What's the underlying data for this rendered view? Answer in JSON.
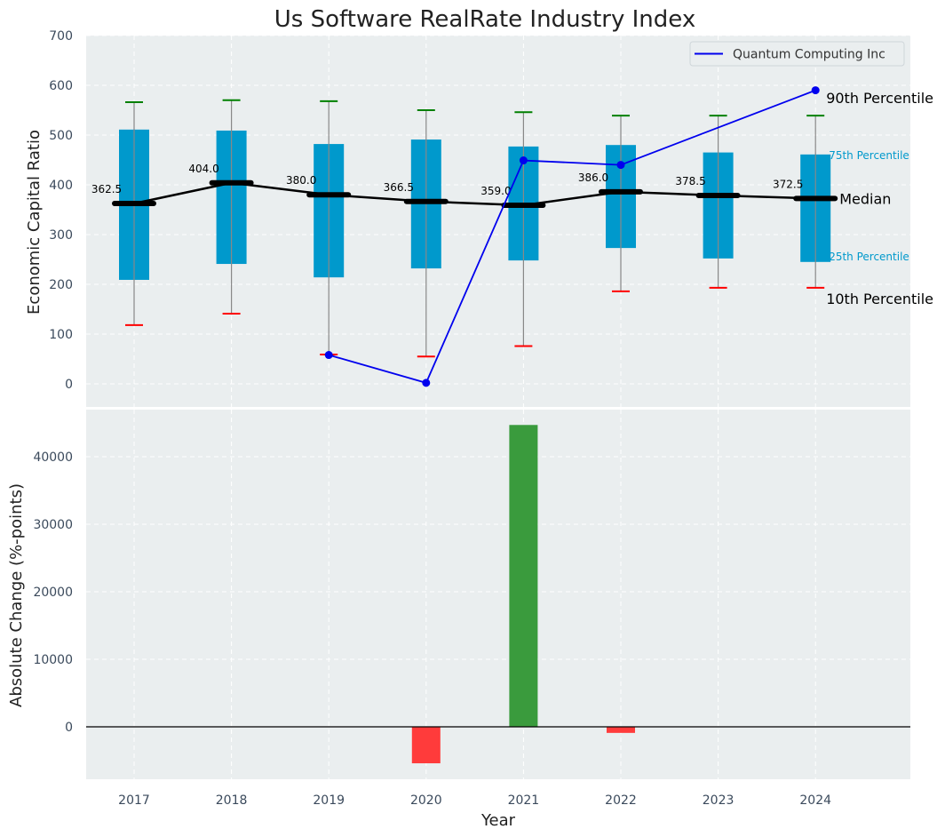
{
  "chart_data": [
    {
      "type": "box",
      "title": "Us Software RealRate Industry Index",
      "ylabel": "Economic Capital Ratio",
      "ylim": [
        -50,
        700
      ],
      "yticks": [
        0,
        100,
        200,
        300,
        400,
        500,
        600,
        700
      ],
      "categories": [
        "2017",
        "2018",
        "2019",
        "2020",
        "2021",
        "2022",
        "2023",
        "2024"
      ],
      "p10": [
        118,
        141,
        59,
        55,
        76,
        186,
        193,
        193
      ],
      "p25": [
        209,
        241,
        214,
        232,
        248,
        273,
        252,
        245
      ],
      "median": [
        362.5,
        404.0,
        380.0,
        366.5,
        359.0,
        386.0,
        378.5,
        372.5
      ],
      "median_labels": [
        "362.5",
        "404.0",
        "380.0",
        "366.5",
        "359.0",
        "386.0",
        "378.5",
        "372.5"
      ],
      "p75": [
        511,
        509,
        482,
        491,
        477,
        480,
        465,
        461
      ],
      "p90": [
        566,
        570,
        568,
        550,
        546,
        539,
        539,
        539
      ],
      "company": {
        "name": "Quantum Computing Inc",
        "years": [
          "2019",
          "2020",
          "2021",
          "2022",
          "2024"
        ],
        "values": [
          58,
          2,
          449,
          440,
          590
        ]
      },
      "annotations": {
        "p90": "90th Percentile",
        "p75": "75th Percentile",
        "median": "Median",
        "p25": "25th Percentile",
        "p10": "10th Percentile"
      },
      "colors": {
        "box": "#0099cc",
        "median": "#000000",
        "whisker": "#888888",
        "p90_cap": "#008000",
        "p10_cap": "#ff0000",
        "company": "#0000ee",
        "background": "#eaeeef",
        "annotation_quartile": "#0099cc"
      }
    },
    {
      "type": "bar",
      "ylabel": "Absolute Change (%-points)",
      "xlabel": "Year",
      "ylim": [
        -8000,
        47000
      ],
      "yticks": [
        0,
        10000,
        20000,
        30000,
        40000
      ],
      "categories": [
        "2017",
        "2018",
        "2019",
        "2020",
        "2021",
        "2022",
        "2023",
        "2024"
      ],
      "values": [
        0,
        0,
        0,
        -5400,
        44700,
        -900,
        0,
        0
      ],
      "colors": {
        "positive": "#3a9b3d",
        "negative": "#ff3b3b"
      }
    }
  ]
}
